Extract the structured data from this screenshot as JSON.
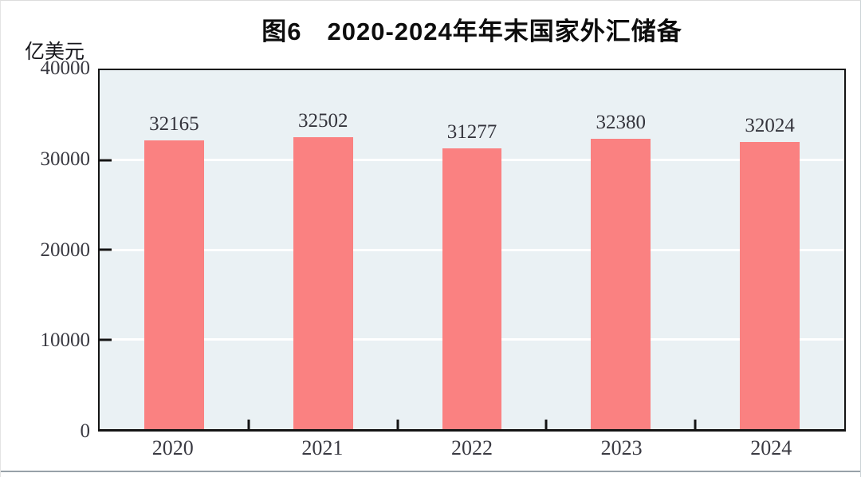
{
  "page": {
    "background": "#ffffff",
    "bottom_rule_color": "#97a1a8"
  },
  "chart_data": {
    "type": "bar",
    "title": "图6　2020-2024年年末国家外汇储备",
    "unit_label": "亿美元",
    "categories": [
      "2020",
      "2021",
      "2022",
      "2023",
      "2024"
    ],
    "values": [
      32165,
      32502,
      31277,
      32380,
      32024
    ],
    "data_labels": [
      "32165",
      "32502",
      "31277",
      "32380",
      "32024"
    ],
    "xlabel": "",
    "ylabel": "亿美元",
    "ylim": [
      0,
      40000
    ],
    "yticks": [
      0,
      10000,
      20000,
      30000,
      40000
    ],
    "ytick_labels": [
      "0",
      "10000",
      "20000",
      "30000",
      "40000"
    ],
    "gridline_ticks": [
      10000,
      20000,
      30000
    ],
    "grid": "horizontal",
    "legend_position": "none",
    "colors": {
      "bar": "#fa8181",
      "plot_background": "#eaf1f4",
      "gridline": "#ffffff",
      "axis": "#141414",
      "title_text": "#0d0d0d",
      "unit_text": "#17171c",
      "tick_text": "#3a3a42",
      "value_text": "#34343c"
    }
  }
}
